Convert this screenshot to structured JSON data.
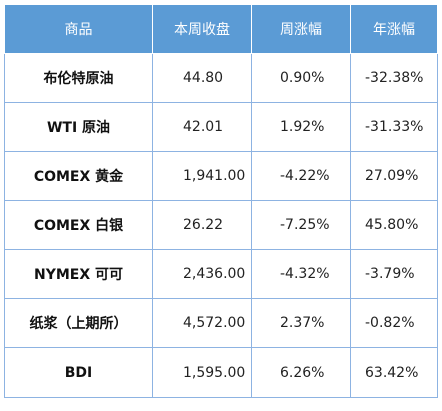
{
  "table": {
    "headers": [
      "商品",
      "本周收盘",
      "周涨幅",
      "年涨幅"
    ],
    "rows": [
      [
        "布伦特原油",
        "44.80",
        "0.90%",
        "-32.38%"
      ],
      [
        "WTI 原油",
        "42.01",
        "1.92%",
        "-31.33%"
      ],
      [
        "COMEX 黄金",
        "1,941.00",
        "-4.22%",
        "27.09%"
      ],
      [
        "COMEX 白银",
        "26.22",
        "-7.25%",
        "45.80%"
      ],
      [
        "NYMEX 可可",
        "2,436.00",
        "-4.32%",
        "-3.79%"
      ],
      [
        "纸浆（上期所）",
        "4,572.00",
        "2.37%",
        "-0.82%"
      ],
      [
        "BDI",
        "1,595.00",
        "6.26%",
        "63.42%"
      ]
    ]
  }
}
